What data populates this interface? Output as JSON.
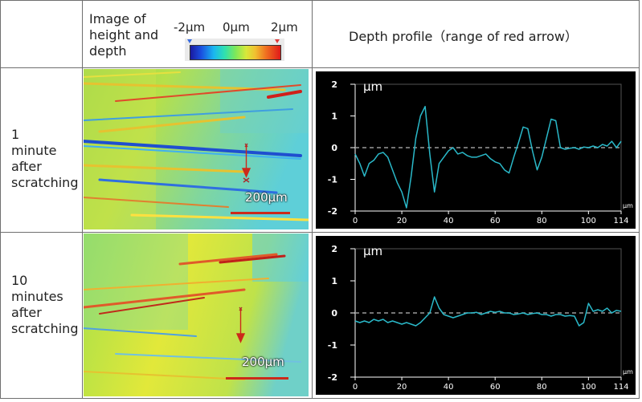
{
  "header": {
    "image_col_title_lines": [
      "Image of",
      "height and",
      "depth"
    ],
    "profile_col_title": "Depth profile（range of red arrow）",
    "colorbar_labels": [
      "-2μm",
      "0μm",
      "2μm"
    ]
  },
  "rows": [
    {
      "label_lines": [
        "1",
        "minute",
        "after",
        "scratching"
      ],
      "scale_bar_text": "200μm"
    },
    {
      "label_lines": [
        "10",
        "minutes",
        "after",
        "scratching"
      ],
      "scale_bar_text": "200μm"
    }
  ],
  "colors": {
    "plot_bg": "#000000",
    "line": "#2ab9c9",
    "zero_dash": "#9a9a9a",
    "axis": "#ffffff",
    "scale_bar": "#cc2a1a"
  },
  "chart_data": [
    {
      "type": "line",
      "ylabel": "μm",
      "xunit": "μm",
      "xlim": [
        0,
        114
      ],
      "ylim": [
        -2,
        2
      ],
      "xticks": [
        0,
        20,
        40,
        60,
        80,
        100,
        114
      ],
      "yticks": [
        2,
        1,
        0,
        -1,
        -2
      ],
      "x": [
        0,
        2,
        4,
        6,
        8,
        10,
        12,
        14,
        16,
        18,
        20,
        22,
        24,
        26,
        28,
        30,
        32,
        34,
        36,
        38,
        40,
        42,
        44,
        46,
        48,
        50,
        52,
        54,
        56,
        58,
        60,
        62,
        64,
        66,
        68,
        70,
        72,
        74,
        76,
        78,
        80,
        82,
        84,
        86,
        88,
        90,
        92,
        94,
        96,
        98,
        100,
        102,
        104,
        106,
        108,
        110,
        112,
        114
      ],
      "y": [
        -0.2,
        -0.5,
        -0.9,
        -0.5,
        -0.4,
        -0.2,
        -0.15,
        -0.3,
        -0.7,
        -1.1,
        -1.4,
        -1.9,
        -0.9,
        0.3,
        1.0,
        1.3,
        -0.2,
        -1.4,
        -0.5,
        -0.3,
        -0.1,
        0.0,
        -0.2,
        -0.15,
        -0.25,
        -0.3,
        -0.3,
        -0.25,
        -0.2,
        -0.35,
        -0.45,
        -0.5,
        -0.7,
        -0.8,
        -0.3,
        0.15,
        0.65,
        0.6,
        -0.1,
        -0.7,
        -0.3,
        0.3,
        0.9,
        0.85,
        0.0,
        -0.05,
        -0.02,
        0.0,
        -0.05,
        0.02,
        0.0,
        0.05,
        0.0,
        0.1,
        0.05,
        0.2,
        0.0,
        0.2
      ]
    },
    {
      "type": "line",
      "ylabel": "μm",
      "xunit": "μm",
      "xlim": [
        0,
        114
      ],
      "ylim": [
        -2,
        2
      ],
      "xticks": [
        0,
        20,
        40,
        60,
        80,
        100,
        114
      ],
      "yticks": [
        2,
        1,
        0,
        -1,
        -2
      ],
      "x": [
        0,
        2,
        4,
        6,
        8,
        10,
        12,
        14,
        16,
        18,
        20,
        22,
        24,
        26,
        28,
        30,
        32,
        34,
        36,
        38,
        40,
        42,
        44,
        46,
        48,
        50,
        52,
        54,
        56,
        58,
        60,
        62,
        64,
        66,
        68,
        70,
        72,
        74,
        76,
        78,
        80,
        82,
        84,
        86,
        88,
        90,
        92,
        94,
        96,
        98,
        100,
        102,
        104,
        106,
        108,
        110,
        112,
        114
      ],
      "y": [
        -0.25,
        -0.3,
        -0.25,
        -0.3,
        -0.2,
        -0.25,
        -0.2,
        -0.3,
        -0.25,
        -0.3,
        -0.35,
        -0.3,
        -0.35,
        -0.4,
        -0.3,
        -0.15,
        0.0,
        0.5,
        0.15,
        -0.05,
        -0.1,
        -0.15,
        -0.1,
        -0.05,
        0.0,
        0.0,
        0.02,
        -0.05,
        0.0,
        0.05,
        0.02,
        0.05,
        0.0,
        0.0,
        -0.05,
        -0.03,
        0.0,
        -0.05,
        -0.02,
        0.0,
        -0.05,
        -0.05,
        -0.1,
        -0.05,
        -0.05,
        -0.1,
        -0.08,
        -0.1,
        -0.4,
        -0.3,
        0.3,
        0.05,
        0.1,
        0.05,
        0.15,
        0.0,
        0.08,
        0.05
      ]
    }
  ]
}
